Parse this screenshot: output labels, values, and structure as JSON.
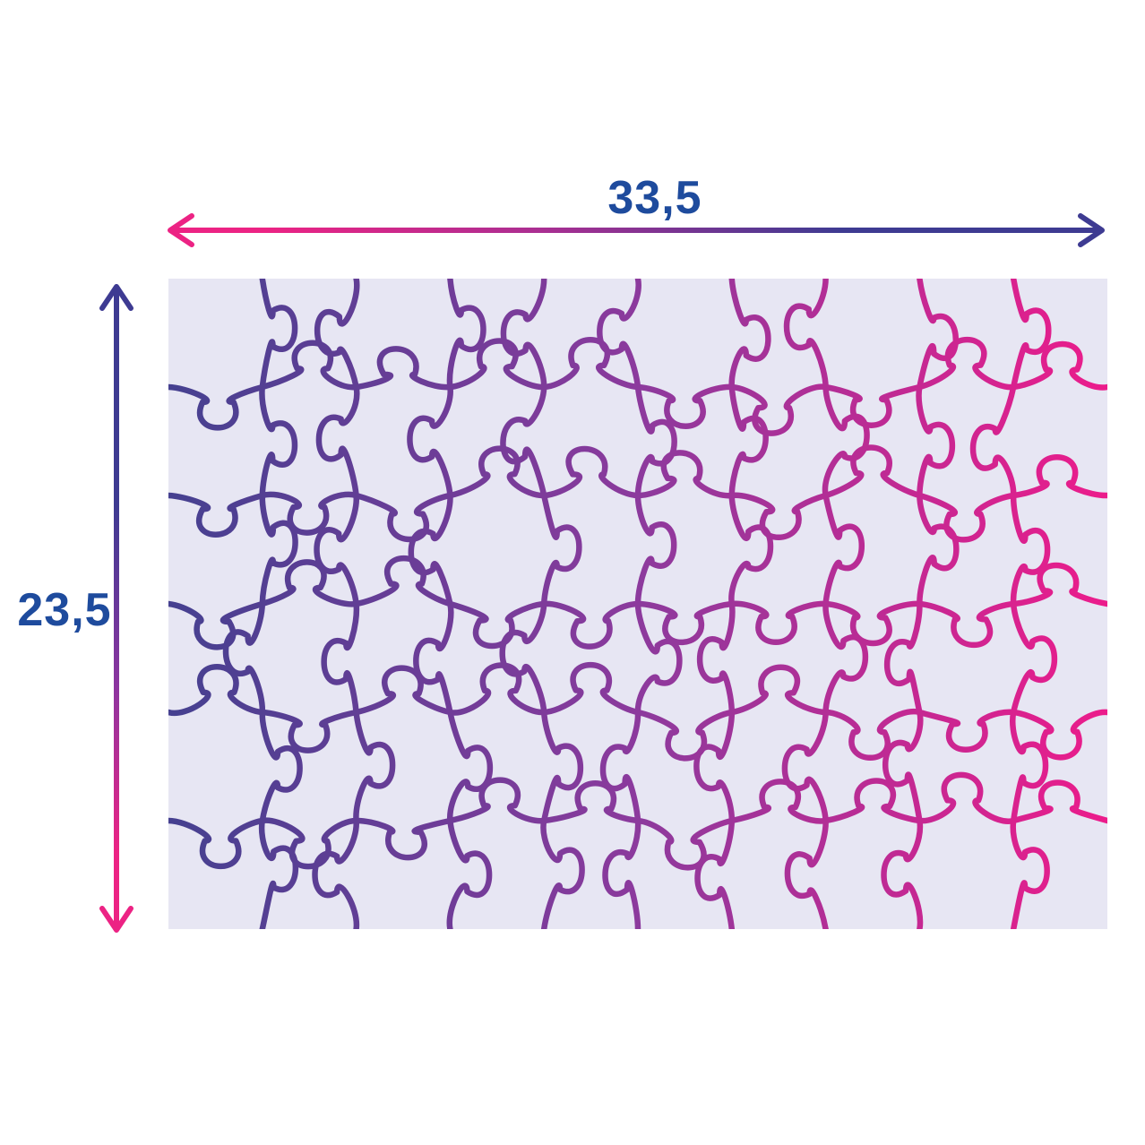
{
  "diagram": {
    "subject": "assembled-puzzle-dimensions",
    "width_cm": "33,5",
    "height_cm": "23,5",
    "puzzle": {
      "columns": 10,
      "rows": 6,
      "pieces": 60
    },
    "icons": {
      "width_arrow": "double-headed-horizontal-arrow",
      "height_arrow": "double-headed-vertical-arrow"
    },
    "colors": {
      "label_text": "#1e4b9d",
      "arrow_blue": "#3e3b92",
      "arrow_pink": "#ec2384",
      "line_blue": "#454090",
      "line_purple": "#8c3a9d",
      "line_pink": "#ec1c8b",
      "board_background": "#e7e6f3",
      "page_background": "#ffffff"
    }
  }
}
